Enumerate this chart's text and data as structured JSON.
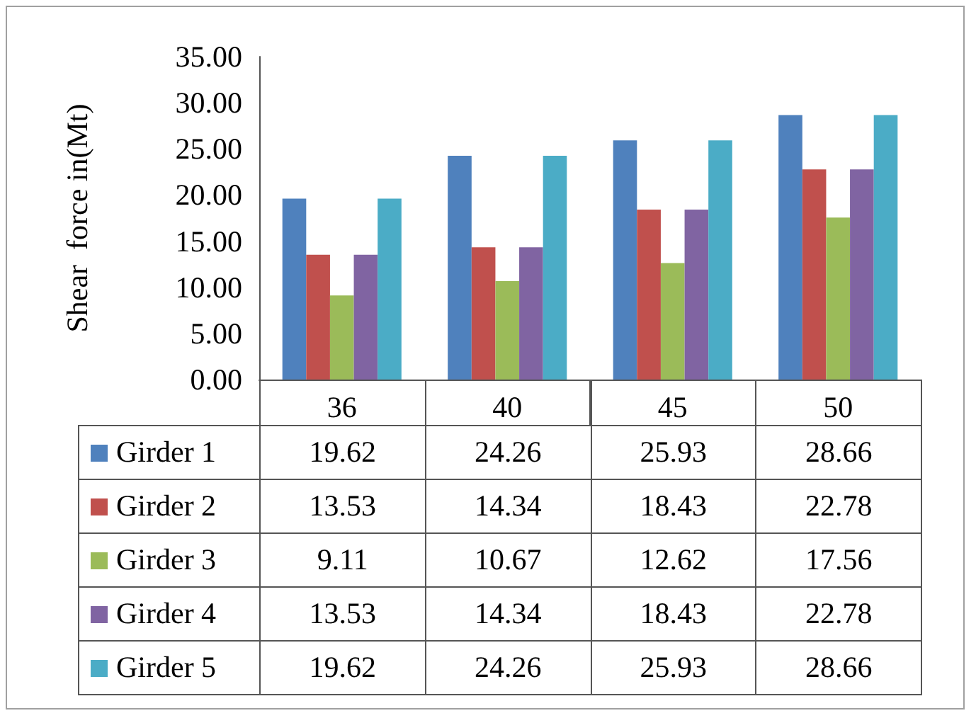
{
  "chart_data": {
    "type": "bar",
    "ylabel": "Shear  force in(Mt)",
    "categories": [
      "36",
      "40",
      "45",
      "50"
    ],
    "series": [
      {
        "name": "Girder 1",
        "color": "#4f81bd",
        "values": [
          19.62,
          24.26,
          25.93,
          28.66
        ]
      },
      {
        "name": "Girder 2",
        "color": "#c0504d",
        "values": [
          13.53,
          14.34,
          18.43,
          22.78
        ]
      },
      {
        "name": "Girder 3",
        "color": "#9bbb59",
        "values": [
          9.11,
          10.67,
          12.62,
          17.56
        ]
      },
      {
        "name": "Girder 4",
        "color": "#8064a2",
        "values": [
          13.53,
          14.34,
          18.43,
          22.78
        ]
      },
      {
        "name": "Girder 5",
        "color": "#4bacc6",
        "values": [
          19.62,
          24.26,
          25.93,
          28.66
        ]
      }
    ],
    "ylim": [
      0,
      35
    ],
    "yticks": [
      {
        "value": 0,
        "label": "0.00"
      },
      {
        "value": 5,
        "label": "5.00"
      },
      {
        "value": 10,
        "label": "10.00"
      },
      {
        "value": 15,
        "label": "15.00"
      },
      {
        "value": 20,
        "label": "20.00"
      },
      {
        "value": 25,
        "label": "25.00"
      },
      {
        "value": 30,
        "label": "30.00"
      },
      {
        "value": 35,
        "label": "35.00"
      }
    ],
    "grid": false,
    "legend": "bottom",
    "data_labels": true
  }
}
